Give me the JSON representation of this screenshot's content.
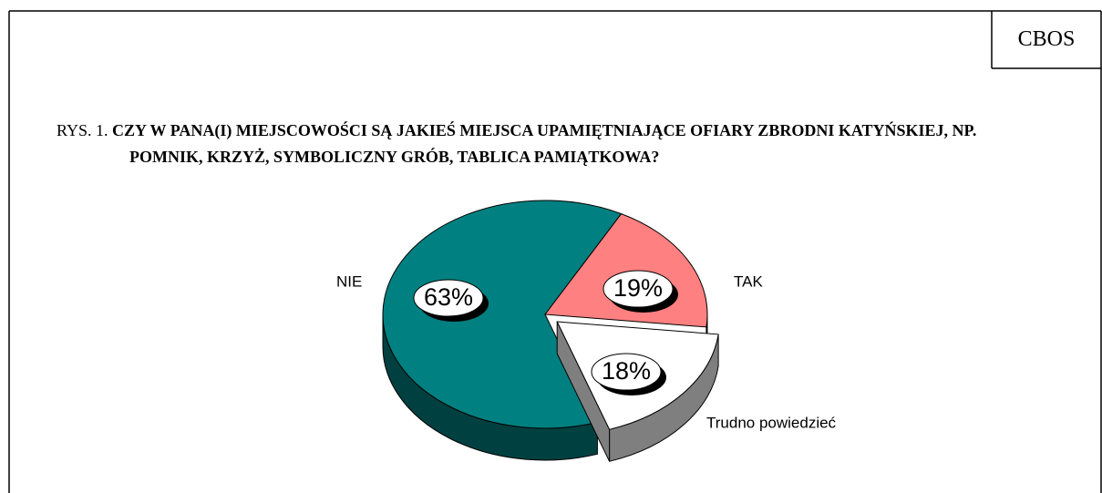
{
  "chart_data": {
    "type": "pie",
    "source": "CBOS",
    "figure_label": "RYS. 1.",
    "title": "CZY W PANA(I) MIEJSCOWOŚCI SĄ JAKIEŚ MIEJSCA UPAMIĘTNIAJĄCE OFIARY ZBRODNI KATYŃSKIEJ, NP. POMNIK, KRZYŻ, SYMBOLICZNY GRÓB, TABLICA PAMIĄTKOWA?",
    "categories": [
      "NIE",
      "TAK",
      "Trudno powiedzieć"
    ],
    "values": [
      63,
      19,
      18
    ],
    "value_labels": [
      "63%",
      "19%",
      "18%"
    ],
    "colors": [
      "#008080",
      "#ff8080",
      "#ffffff"
    ]
  }
}
